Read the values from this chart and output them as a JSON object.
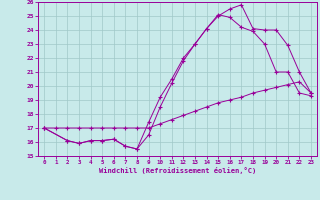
{
  "xlabel": "Windchill (Refroidissement éolien,°C)",
  "line_color": "#990099",
  "bg_color": "#c8eaea",
  "grid_color": "#a0c8c8",
  "xlim": [
    -0.5,
    23.5
  ],
  "ylim": [
    15,
    26
  ],
  "xticks": [
    0,
    1,
    2,
    3,
    4,
    5,
    6,
    7,
    8,
    9,
    10,
    11,
    12,
    13,
    14,
    15,
    16,
    17,
    18,
    19,
    20,
    21,
    22,
    23
  ],
  "yticks": [
    15,
    16,
    17,
    18,
    19,
    20,
    21,
    22,
    23,
    24,
    25,
    26
  ],
  "line1_x": [
    0,
    1,
    2,
    3,
    4,
    5,
    6,
    7,
    8,
    9,
    10,
    11,
    12,
    13,
    14,
    15,
    16,
    17,
    18,
    19,
    20,
    21,
    22,
    23
  ],
  "line1_y": [
    17,
    17,
    17,
    17,
    17,
    17,
    17,
    17,
    17,
    17,
    17.3,
    17.6,
    17.9,
    18.2,
    18.5,
    18.8,
    19.0,
    19.2,
    19.5,
    19.7,
    19.9,
    20.1,
    20.3,
    19.5
  ],
  "line2_x": [
    0,
    2,
    3,
    4,
    5,
    6,
    7,
    8,
    9,
    10,
    11,
    12,
    13,
    14,
    15,
    16,
    17,
    18,
    19,
    20,
    21,
    22,
    23
  ],
  "line2_y": [
    17,
    16.1,
    15.9,
    16.1,
    16.1,
    16.2,
    15.7,
    15.5,
    17.4,
    19.2,
    20.5,
    22.0,
    23.0,
    24.1,
    25.1,
    24.9,
    24.2,
    23.9,
    23.0,
    21.0,
    21.0,
    19.5,
    19.3
  ],
  "line3_x": [
    0,
    2,
    3,
    4,
    5,
    6,
    7,
    8,
    9,
    10,
    11,
    12,
    13,
    14,
    15,
    16,
    17,
    18,
    19,
    20,
    21,
    22,
    23
  ],
  "line3_y": [
    17,
    16.1,
    15.9,
    16.1,
    16.1,
    16.2,
    15.7,
    15.5,
    16.5,
    18.5,
    20.2,
    21.8,
    23.0,
    24.1,
    25.0,
    25.5,
    25.8,
    24.1,
    24.0,
    24.0,
    22.9,
    21.0,
    19.5
  ]
}
